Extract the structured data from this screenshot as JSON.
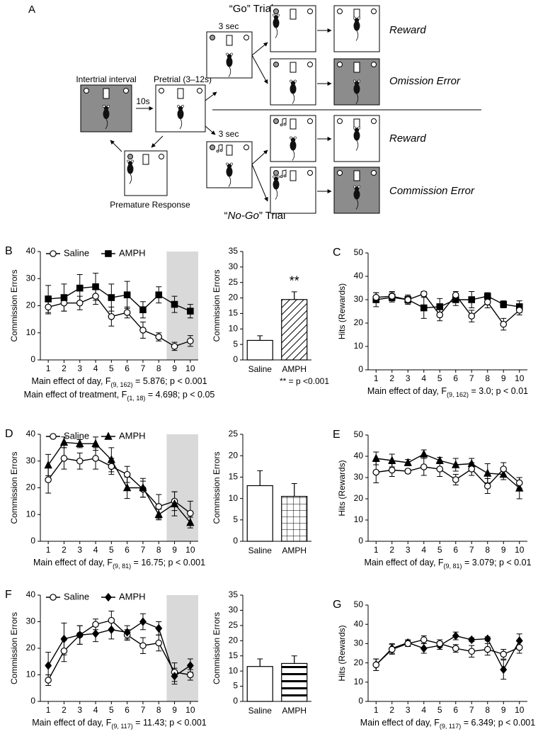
{
  "diagram": {
    "label": "A",
    "go_trial": "“Go” Trial",
    "nogo_trial": [
      "“",
      "No-Go",
      "” Trial"
    ],
    "iti": "Intertrial interval",
    "delay": "10s",
    "pretrial": "Pretrial (3–12s)",
    "go_delay": "3 sec",
    "nogo_delay": "3 sec",
    "outcomes": [
      "Reward",
      "Omission Error",
      "Reward",
      "Commission Error"
    ],
    "premature": "Premature Response"
  },
  "chart_data": [
    {
      "type": "line",
      "panel": "B",
      "ylabel": "Commission Errors",
      "x": [
        1,
        2,
        3,
        4,
        5,
        6,
        7,
        8,
        9,
        10
      ],
      "xlim": [
        0.5,
        10.5
      ],
      "xticks": [
        1,
        2,
        3,
        4,
        5,
        6,
        7,
        8,
        9,
        10
      ],
      "ylim": [
        0,
        40
      ],
      "yticks": [
        0,
        10,
        20,
        30,
        40
      ],
      "shade": [
        8.5,
        10.5
      ],
      "legend": "top-left",
      "series": [
        {
          "name": "Saline",
          "color": "#000000",
          "marker": "circle",
          "marker_fill": "#ffffff",
          "values": [
            19.5,
            21,
            21,
            23.5,
            16,
            17.5,
            11,
            8.5,
            5,
            7
          ],
          "errors": [
            2.5,
            3,
            2.5,
            3,
            3.5,
            2,
            3,
            1.5,
            1.5,
            2
          ]
        },
        {
          "name": "AMPH",
          "color": "#000000",
          "marker": "square",
          "marker_fill": "#000000",
          "values": [
            22.5,
            23,
            26.5,
            27,
            23,
            24,
            18.5,
            24,
            20.5,
            18
          ],
          "errors": [
            5,
            5,
            5,
            5,
            5,
            5,
            3,
            3,
            3,
            2.5
          ]
        }
      ],
      "caption": [
        {
          "before": "Main effect of day, F",
          "sub": "(9, 162)",
          "after": " = 5.876; p < 0.001"
        },
        {
          "before": "Main effect of treatment, F",
          "sub": "(1, 18)",
          "after": " = 4.698; p < 0.05"
        }
      ]
    },
    {
      "type": "bar",
      "ylabel": "Commission Errors",
      "categories": [
        "Saline",
        "AMPH"
      ],
      "values": [
        6.3,
        19.5
      ],
      "errors": [
        1.5,
        2.5
      ],
      "patterns": [
        "none",
        "diagonal"
      ],
      "ylim": [
        0,
        35
      ],
      "yticks": [
        0,
        5,
        10,
        15,
        20,
        25,
        30,
        35
      ],
      "annotation": "**",
      "footnote": "** = p <0.001"
    },
    {
      "type": "line",
      "panel": "C",
      "ylabel": "Hits (Rewards)",
      "x": [
        1,
        2,
        3,
        4,
        5,
        6,
        7,
        8,
        9,
        10
      ],
      "xlim": [
        0.5,
        10.5
      ],
      "xticks": [
        1,
        2,
        3,
        4,
        5,
        6,
        7,
        8,
        9,
        10
      ],
      "ylim": [
        0,
        50
      ],
      "yticks": [
        0,
        10,
        20,
        30,
        40,
        50
      ],
      "series": [
        {
          "color": "#000000",
          "marker": "square",
          "marker_fill": "#000000",
          "values": [
            30,
            31,
            30,
            26.5,
            27,
            30,
            30,
            31.5,
            28,
            27
          ],
          "errors": [
            3,
            2,
            2,
            4.5,
            3.5,
            2.5,
            3.5,
            1.5,
            1.5,
            2.5
          ]
        },
        {
          "color": "#000000",
          "marker": "circle",
          "marker_fill": "#ffffff",
          "values": [
            31,
            31.5,
            30,
            32.5,
            23.5,
            32,
            23,
            29,
            19.5,
            25.5
          ],
          "errors": [
            2,
            2,
            1.5,
            1,
            2.5,
            1.5,
            2.5,
            2.5,
            2.5,
            2
          ]
        }
      ],
      "caption": [
        {
          "before": "Main effect of day, F",
          "sub": "(9, 162)",
          "after": " = 3.0; p < 0.01"
        }
      ]
    },
    {
      "type": "line",
      "panel": "D",
      "ylabel": "Commission Errors",
      "x": [
        1,
        2,
        3,
        4,
        5,
        6,
        7,
        8,
        9,
        10
      ],
      "xlim": [
        0.5,
        10.5
      ],
      "xticks": [
        1,
        2,
        3,
        4,
        5,
        6,
        7,
        8,
        9,
        10
      ],
      "ylim": [
        0,
        40
      ],
      "yticks": [
        0,
        10,
        20,
        30,
        40
      ],
      "shade": [
        8.5,
        10.5
      ],
      "legend": "top-left",
      "series": [
        {
          "name": "Saline",
          "color": "#000000",
          "marker": "circle",
          "marker_fill": "#ffffff",
          "values": [
            23,
            31,
            30,
            31,
            28,
            25,
            19.5,
            13,
            15,
            10.5
          ],
          "errors": [
            5,
            4,
            3,
            4,
            3,
            3,
            3,
            4.5,
            3.5,
            4.5
          ]
        },
        {
          "name": "AMPH",
          "color": "#000000",
          "marker": "triangle",
          "marker_fill": "#000000",
          "values": [
            28.5,
            37,
            36.5,
            36.5,
            30.5,
            20,
            20,
            10,
            14,
            7
          ],
          "errors": [
            4,
            2,
            1.5,
            2.5,
            4.5,
            4,
            3.5,
            2,
            4.5,
            2
          ]
        }
      ],
      "caption": [
        {
          "before": "Main effect of day, F",
          "sub": "(9, 81)",
          "after": " = 16.75; p < 0.001"
        }
      ]
    },
    {
      "type": "bar",
      "ylabel": "Commission Errors",
      "categories": [
        "Saline",
        "AMPH"
      ],
      "values": [
        13,
        10.5
      ],
      "errors": [
        3.5,
        3
      ],
      "patterns": [
        "none",
        "grid"
      ],
      "ylim": [
        0,
        25
      ],
      "yticks": [
        0,
        5,
        10,
        15,
        20,
        25
      ]
    },
    {
      "type": "line",
      "panel": "E",
      "ylabel": "Hits (Rewards)",
      "x": [
        1,
        2,
        3,
        4,
        5,
        6,
        7,
        8,
        9,
        10
      ],
      "xlim": [
        0.5,
        10.5
      ],
      "xticks": [
        1,
        2,
        3,
        4,
        5,
        6,
        7,
        8,
        9,
        10
      ],
      "ylim": [
        0,
        50
      ],
      "yticks": [
        0,
        10,
        20,
        30,
        40,
        50
      ],
      "series": [
        {
          "color": "#000000",
          "marker": "triangle",
          "marker_fill": "#000000",
          "values": [
            39,
            38,
            37,
            41,
            38,
            36,
            36.5,
            32,
            31.5,
            25
          ],
          "errors": [
            3,
            3,
            1.5,
            2,
            1.5,
            3,
            2.5,
            4.5,
            2.5,
            5
          ]
        },
        {
          "color": "#000000",
          "marker": "circle",
          "marker_fill": "#ffffff",
          "values": [
            32.5,
            33.5,
            33,
            35,
            34,
            29,
            34,
            26,
            34,
            27.5
          ],
          "errors": [
            5,
            3,
            1,
            4,
            3.5,
            2.5,
            3,
            3.5,
            3,
            2.5
          ]
        }
      ],
      "caption": [
        {
          "before": "Main effect of day, F",
          "sub": "(9, 81)",
          "after": " = 3.079; p < 0.01"
        }
      ]
    },
    {
      "type": "line",
      "panel": "F",
      "ylabel": "Commission Errors",
      "x": [
        1,
        2,
        3,
        4,
        5,
        6,
        7,
        8,
        9,
        10
      ],
      "xlim": [
        0.5,
        10.5
      ],
      "xticks": [
        1,
        2,
        3,
        4,
        5,
        6,
        7,
        8,
        9,
        10
      ],
      "ylim": [
        0,
        40
      ],
      "yticks": [
        0,
        10,
        20,
        30,
        40
      ],
      "shade": [
        8.5,
        10.5
      ],
      "legend": "top-left",
      "series": [
        {
          "name": "Saline",
          "color": "#000000",
          "marker": "circle",
          "marker_fill": "#ffffff",
          "values": [
            8,
            19,
            25,
            29,
            30.5,
            25,
            21,
            22,
            11,
            10
          ],
          "errors": [
            2,
            4,
            3.5,
            2,
            3.5,
            2,
            3,
            3,
            3.5,
            2
          ]
        },
        {
          "name": "AMPH",
          "color": "#000000",
          "marker": "diamond",
          "marker_fill": "#000000",
          "values": [
            13.5,
            23.5,
            25,
            25.5,
            27,
            26,
            30,
            27.5,
            9.5,
            13.5
          ],
          "errors": [
            5,
            6,
            3.5,
            3,
            3.5,
            2.5,
            3,
            2.5,
            3,
            2.5
          ]
        }
      ],
      "caption": [
        {
          "before": "Main effect of day, F",
          "sub": "(9, 117)",
          "after": " = 11.43; p < 0.001"
        }
      ]
    },
    {
      "type": "bar",
      "ylabel": "Commission Errors",
      "categories": [
        "Saline",
        "AMPH"
      ],
      "values": [
        11.5,
        12.5
      ],
      "errors": [
        2.5,
        2.5
      ],
      "patterns": [
        "none",
        "hstripe"
      ],
      "ylim": [
        0,
        35
      ],
      "yticks": [
        0,
        5,
        10,
        15,
        20,
        25,
        30,
        35
      ]
    },
    {
      "type": "line",
      "panel": "G",
      "ylabel": "Hits (Rewards)",
      "x": [
        1,
        2,
        3,
        4,
        5,
        6,
        7,
        8,
        9,
        10
      ],
      "xlim": [
        0.5,
        10.5
      ],
      "xticks": [
        1,
        2,
        3,
        4,
        5,
        6,
        7,
        8,
        9,
        10
      ],
      "ylim": [
        0,
        50
      ],
      "yticks": [
        0,
        10,
        20,
        30,
        40,
        50
      ],
      "series": [
        {
          "color": "#000000",
          "marker": "diamond",
          "marker_fill": "#000000",
          "values": [
            19,
            27.5,
            30.5,
            27.5,
            29,
            34,
            32,
            32.5,
            16.5,
            31.5
          ],
          "errors": [
            3,
            2.5,
            1.5,
            2.5,
            2,
            2,
            1,
            1,
            5,
            3.5
          ]
        },
        {
          "color": "#000000",
          "marker": "circle",
          "marker_fill": "#ffffff",
          "values": [
            19,
            27,
            30,
            32,
            30,
            27.5,
            26,
            27,
            24.5,
            28
          ],
          "errors": [
            3,
            2.5,
            1.5,
            2,
            2,
            2,
            3,
            3,
            2.5,
            3
          ]
        }
      ],
      "caption": [
        {
          "before": "Main effect of day, F",
          "sub": "(9, 117)",
          "after": " = 6.349; p < 0.001"
        }
      ]
    }
  ]
}
